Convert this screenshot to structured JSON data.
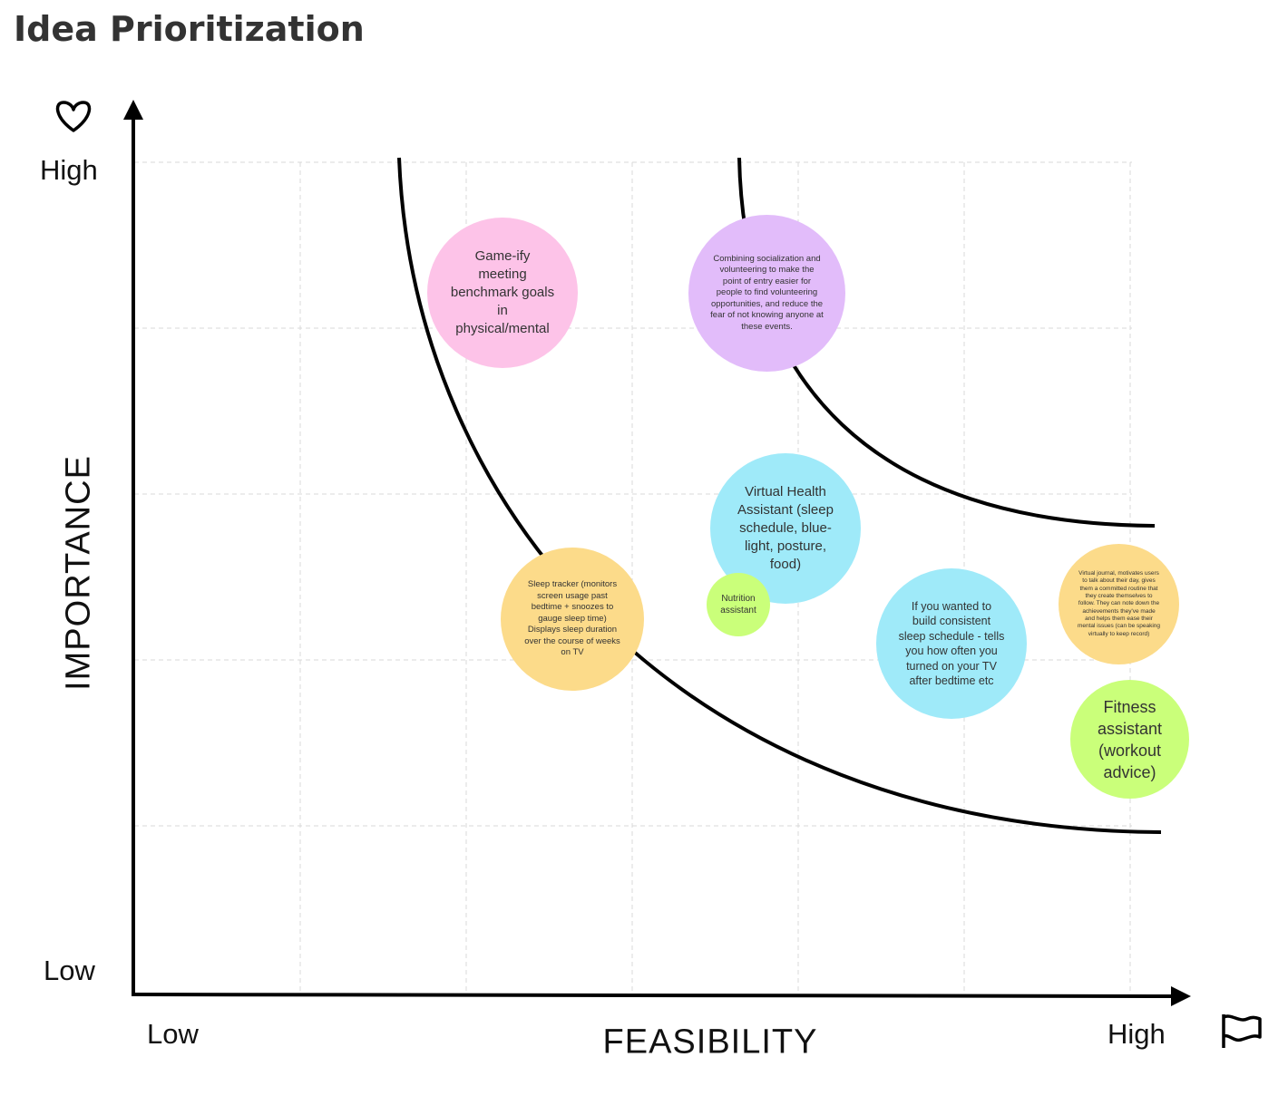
{
  "title": "Idea Prioritization",
  "axes": {
    "y": {
      "label": "IMPORTANCE",
      "high": "High",
      "low": "Low",
      "icon": "heart-icon"
    },
    "x": {
      "label": "FEASIBILITY",
      "low": "Low",
      "high": "High",
      "icon": "flag-icon"
    }
  },
  "colors": {
    "pink": "#fdc3e8",
    "purple": "#e2bcfa",
    "yellow": "#fcdb8a",
    "blue": "#9feaf9",
    "green": "#caff7a",
    "grid": "#d9d9d9",
    "axis": "#000000"
  },
  "ideas": [
    {
      "id": "gameify",
      "text": "Game-ify meeting benchmark goals in physical/mental",
      "color": "pink"
    },
    {
      "id": "socialization",
      "text": "Combining socialization and volunteering to make the point of entry easier for people to find volunteering opportunities, and reduce the fear of not knowing anyone at these events.",
      "color": "purple"
    },
    {
      "id": "virtual-health",
      "text": "Virtual Health Assistant (sleep schedule, blue-light, posture, food)",
      "color": "blue"
    },
    {
      "id": "sleep-tracker",
      "text": "Sleep tracker (monitors screen usage past bedtime + snoozes to gauge sleep time) Displays sleep duration over the course of weeks on TV",
      "color": "yellow"
    },
    {
      "id": "nutrition",
      "text": "Nutrition assistant",
      "color": "green"
    },
    {
      "id": "sleep-schedule",
      "text": "If you wanted to build consistent sleep schedule - tells you how often you turned on your TV after bedtime etc",
      "color": "blue"
    },
    {
      "id": "virtual-journal",
      "text": "Virtual journal, motivates users to talk about their day, gives them a committed routine that they create themselves to follow. They can note down the achievements they've made and helps them ease their mental issues (can be speaking virtually to keep record)",
      "color": "yellow"
    },
    {
      "id": "fitness",
      "text": "Fitness assistant (workout advice)",
      "color": "green"
    }
  ]
}
